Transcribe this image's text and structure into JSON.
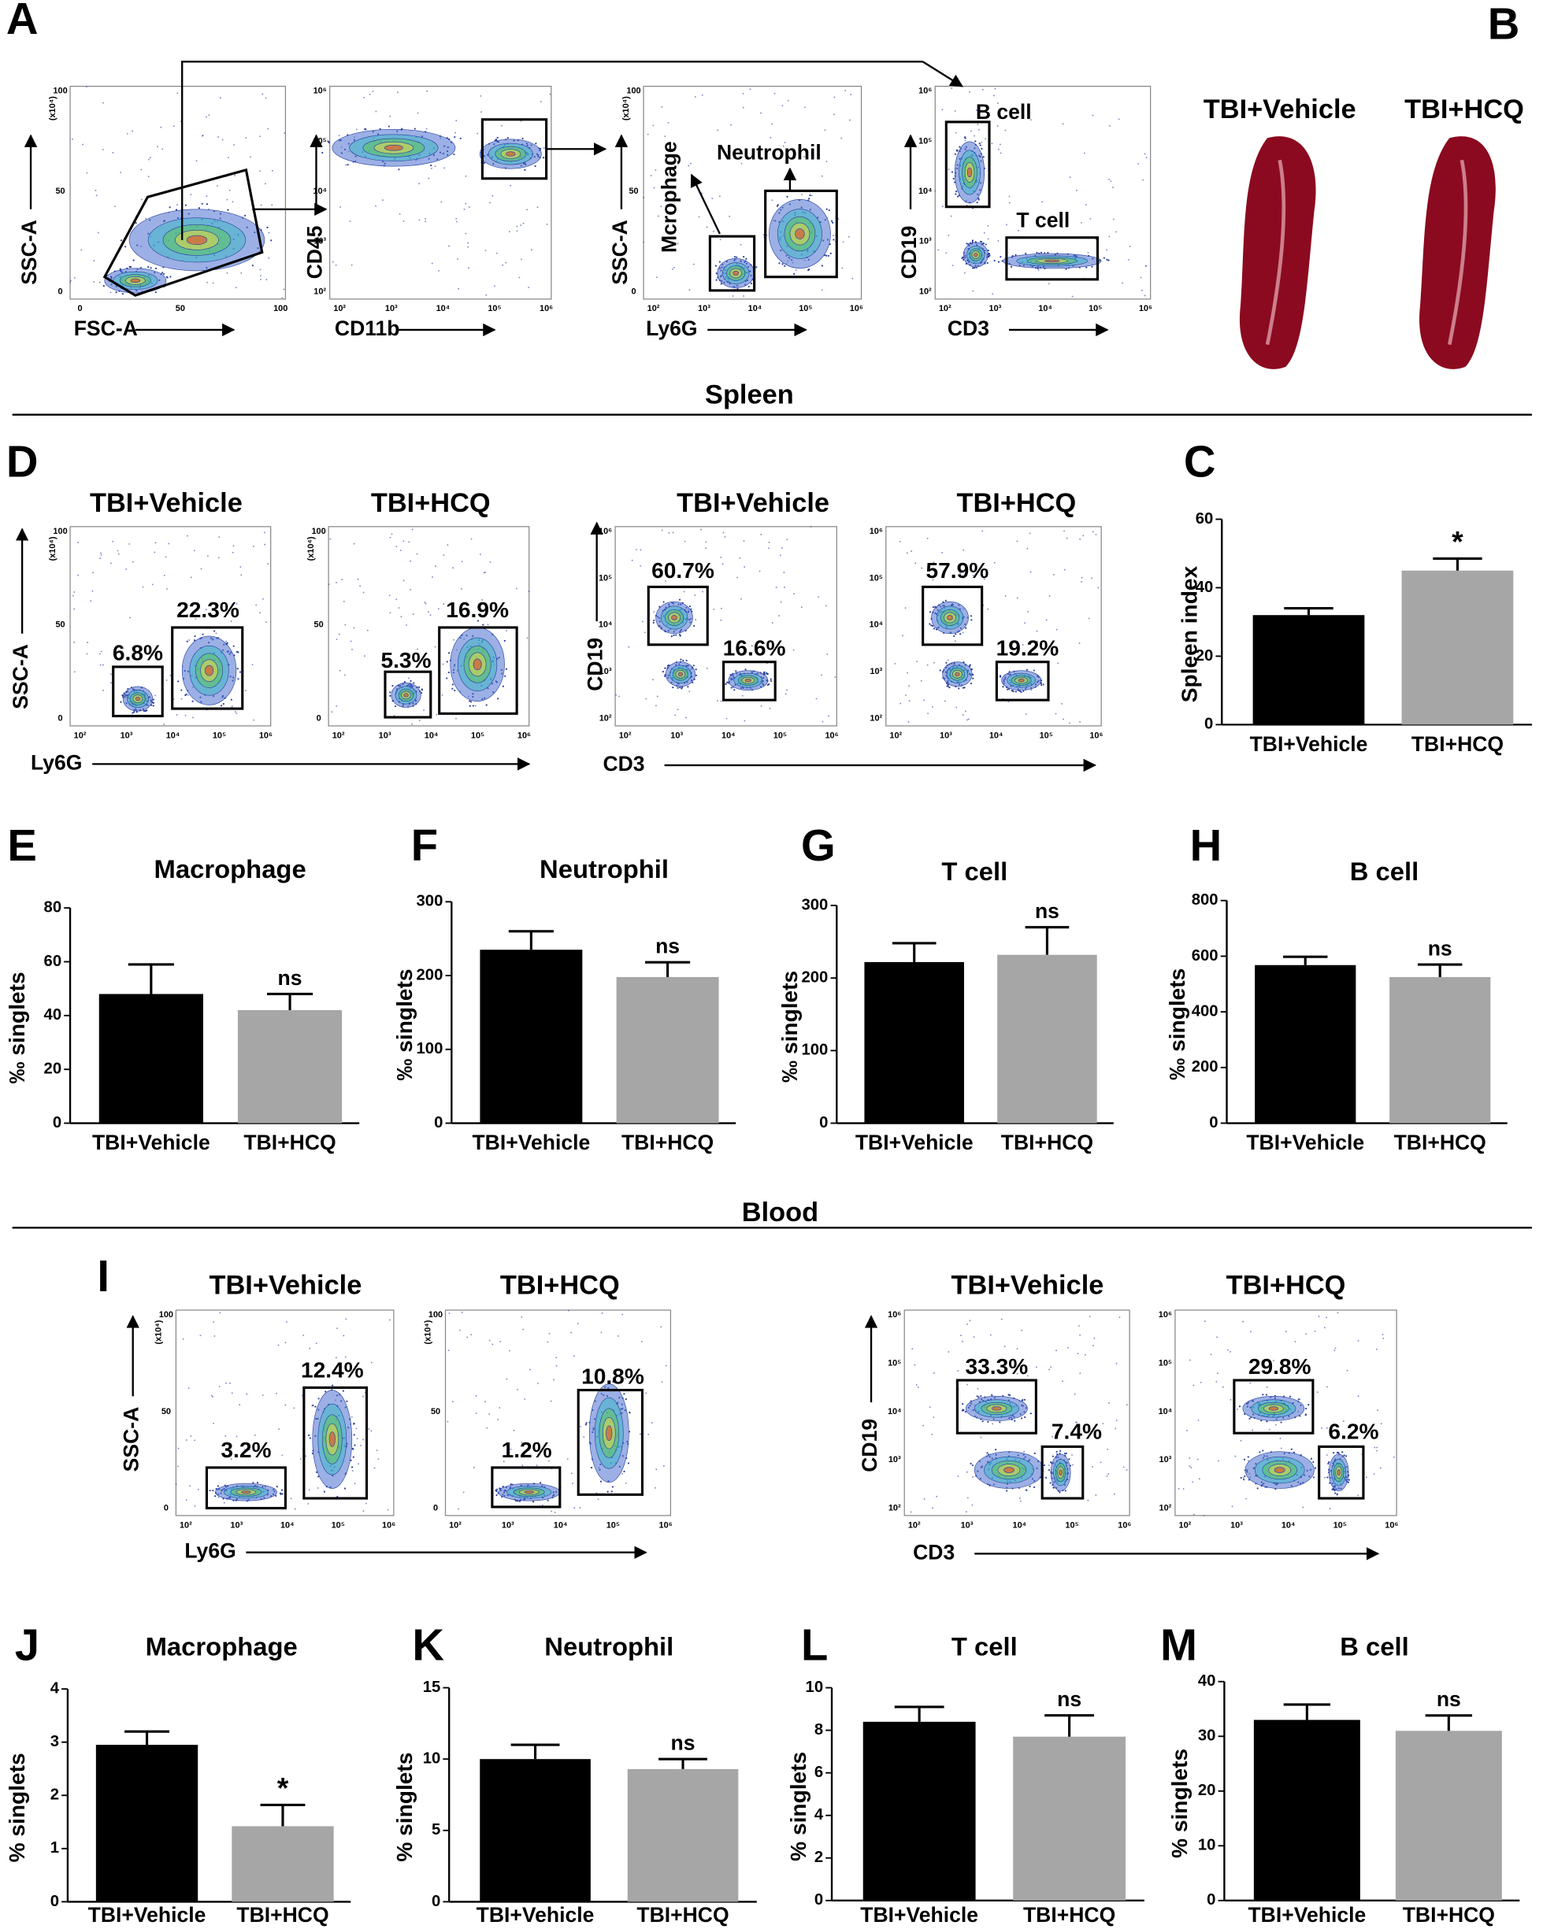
{
  "figure": {
    "letters": [
      "A",
      "B",
      "D",
      "I"
    ],
    "sections": [
      "Spleen",
      "Blood"
    ],
    "panel_a": {
      "axes": [
        [
          "FSC-A",
          "SSC-A"
        ],
        [
          "CD11b",
          "CD45"
        ],
        [
          "Ly6G",
          "SSC-A"
        ],
        [
          "CD3",
          "CD19"
        ]
      ],
      "gates": [
        "B cell",
        "Neutrophil",
        "Mcrophage",
        "T cell"
      ]
    },
    "panel_b": [
      "TBI+Vehicle",
      "TBI+HCQ"
    ],
    "panel_d": {
      "groups": [
        "TBI+Vehicle",
        "TBI+HCQ",
        "TBI+Vehicle",
        "TBI+HCQ"
      ],
      "percents": [
        "6.8%",
        "22.3%",
        "5.3%",
        "16.9%",
        "60.7%",
        "16.6%",
        "57.9%",
        "19.2%"
      ],
      "axes": [
        [
          "Ly6G",
          "SSC-A"
        ],
        [
          "CD3",
          "CD19"
        ]
      ]
    },
    "panel_i": {
      "groups": [
        "TBI+Vehicle",
        "TBI+HCQ",
        "TBI+Vehicle",
        "TBI+HCQ"
      ],
      "percents": [
        "3.2%",
        "12.4%",
        "1.2%",
        "10.8%",
        "33.3%",
        "7.4%",
        "29.8%",
        "6.2%"
      ],
      "axes": [
        [
          "Ly6G",
          "SSC-A"
        ],
        [
          "CD3",
          "CD19"
        ]
      ]
    },
    "ticks": {
      "linear": [
        "0",
        "50",
        "100"
      ],
      "log": [
        "10²",
        "10³",
        "10⁴",
        "10⁵",
        "10⁶"
      ],
      "scale": "(x10⁴)"
    }
  },
  "chart_data": [
    {
      "type": "bar",
      "panel": "C",
      "ylabel": "Spleen index",
      "categories": [
        "TBI+Vehicle",
        "TBI+HCQ"
      ],
      "colors": [
        "#000000",
        "#a6a6a6"
      ],
      "values": [
        32,
        45
      ],
      "errors": [
        2,
        3.5
      ],
      "significance": [
        null,
        "*"
      ],
      "ylim": [
        0,
        60
      ],
      "yticks": [
        0,
        20,
        40,
        60
      ]
    },
    {
      "type": "bar",
      "panel": "E",
      "title": "Macrophage",
      "ylabel": "‰ singlets",
      "categories": [
        "TBI+Vehicle",
        "TBI+HCQ"
      ],
      "colors": [
        "#000000",
        "#a6a6a6"
      ],
      "values": [
        48,
        42
      ],
      "errors": [
        11,
        6
      ],
      "significance": [
        null,
        "ns"
      ],
      "ylim": [
        0,
        80
      ],
      "yticks": [
        0,
        20,
        40,
        60,
        80
      ]
    },
    {
      "type": "bar",
      "panel": "F",
      "title": "Neutrophil",
      "ylabel": "‰ singlets",
      "categories": [
        "TBI+Vehicle",
        "TBI+HCQ"
      ],
      "colors": [
        "#000000",
        "#a6a6a6"
      ],
      "values": [
        235,
        198
      ],
      "errors": [
        25,
        20
      ],
      "significance": [
        null,
        "ns"
      ],
      "ylim": [
        0,
        300
      ],
      "yticks": [
        0,
        100,
        200,
        300
      ]
    },
    {
      "type": "bar",
      "panel": "G",
      "title": "T cell",
      "ylabel": "‰ singlets",
      "categories": [
        "TBI+Vehicle",
        "TBI+HCQ"
      ],
      "colors": [
        "#000000",
        "#a6a6a6"
      ],
      "values": [
        222,
        232
      ],
      "errors": [
        26,
        38
      ],
      "significance": [
        null,
        "ns"
      ],
      "ylim": [
        0,
        300
      ],
      "yticks": [
        0,
        100,
        200,
        300
      ]
    },
    {
      "type": "bar",
      "panel": "H",
      "title": "B cell",
      "ylabel": "‰ singlets",
      "categories": [
        "TBI+Vehicle",
        "TBI+HCQ"
      ],
      "colors": [
        "#000000",
        "#a6a6a6"
      ],
      "values": [
        568,
        525
      ],
      "errors": [
        30,
        45
      ],
      "significance": [
        null,
        "ns"
      ],
      "ylim": [
        0,
        800
      ],
      "yticks": [
        0,
        200,
        400,
        600,
        800
      ]
    },
    {
      "type": "bar",
      "panel": "J",
      "title": "Macrophage",
      "ylabel": "% singlets",
      "categories": [
        "TBI+Vehicle",
        "TBI+HCQ"
      ],
      "colors": [
        "#000000",
        "#a6a6a6"
      ],
      "values": [
        2.95,
        1.42
      ],
      "errors": [
        0.25,
        0.4
      ],
      "significance": [
        null,
        "*"
      ],
      "ylim": [
        0,
        4
      ],
      "yticks": [
        0,
        1,
        2,
        3,
        4
      ]
    },
    {
      "type": "bar",
      "panel": "K",
      "title": "Neutrophil",
      "ylabel": "% singlets",
      "categories": [
        "TBI+Vehicle",
        "TBI+HCQ"
      ],
      "colors": [
        "#000000",
        "#a6a6a6"
      ],
      "values": [
        10,
        9.3
      ],
      "errors": [
        1,
        0.7
      ],
      "significance": [
        null,
        "ns"
      ],
      "ylim": [
        0,
        15
      ],
      "yticks": [
        0,
        5,
        10,
        15
      ]
    },
    {
      "type": "bar",
      "panel": "L",
      "title": "T cell",
      "ylabel": "% singlets",
      "categories": [
        "TBI+Vehicle",
        "TBI+HCQ"
      ],
      "colors": [
        "#000000",
        "#a6a6a6"
      ],
      "values": [
        8.4,
        7.7
      ],
      "errors": [
        0.7,
        1.0
      ],
      "significance": [
        null,
        "ns"
      ],
      "ylim": [
        0,
        10
      ],
      "yticks": [
        0,
        2,
        4,
        6,
        8,
        10
      ]
    },
    {
      "type": "bar",
      "panel": "M",
      "title": "B cell",
      "ylabel": "% singlets",
      "categories": [
        "TBI+Vehicle",
        "TBI+HCQ"
      ],
      "colors": [
        "#000000",
        "#a6a6a6"
      ],
      "values": [
        33,
        31
      ],
      "errors": [
        2.8,
        2.8
      ],
      "significance": [
        null,
        "ns"
      ],
      "ylim": [
        0,
        40
      ],
      "yticks": [
        0,
        10,
        20,
        30,
        40
      ]
    }
  ]
}
